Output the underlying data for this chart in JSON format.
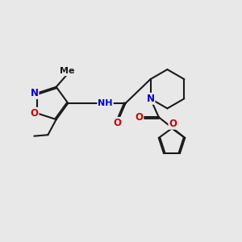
{
  "bg_color": "#e8e8e8",
  "bond_color": "#1a1a1a",
  "bond_width": 1.5,
  "atom_colors": {
    "N": "#0000cc",
    "O": "#cc0000",
    "C": "#1a1a1a",
    "H": "#4a7a7a"
  },
  "font_size": 8.5,
  "font_size_small": 7.5
}
